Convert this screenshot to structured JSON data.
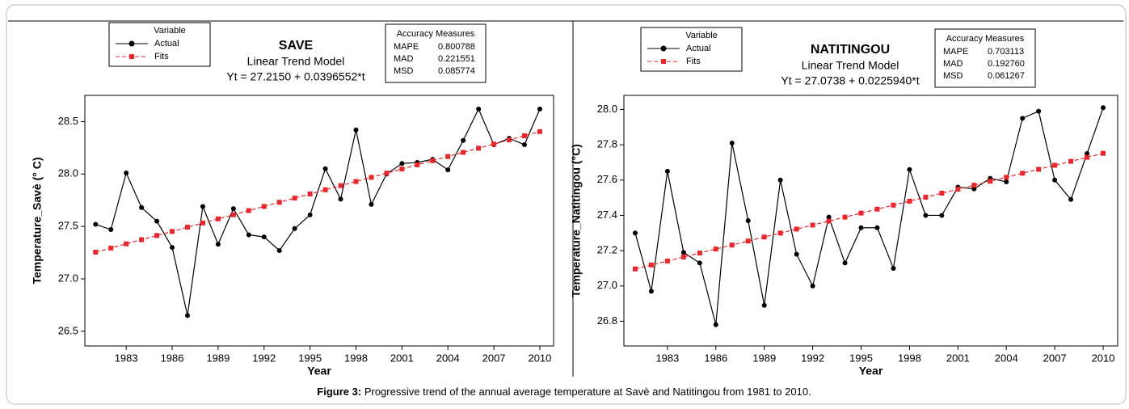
{
  "chart_data": [
    {
      "type": "line",
      "title": "SAVE",
      "subtitle": "Linear Trend Model",
      "equation": "Yt = 27.2150 + 0.0396552*t",
      "x_label": "Year",
      "y_label": "Temperature_Savè (° C)",
      "legend_title": "Variable",
      "x": [
        1981,
        1982,
        1983,
        1984,
        1985,
        1986,
        1987,
        1988,
        1989,
        1990,
        1991,
        1992,
        1993,
        1994,
        1995,
        1996,
        1997,
        1998,
        1999,
        2000,
        2001,
        2002,
        2003,
        2004,
        2005,
        2006,
        2007,
        2008,
        2009,
        2010
      ],
      "series": [
        {
          "name": "Actual",
          "color": "#000000",
          "marker": "circle",
          "dashed": false,
          "values": [
            27.52,
            27.47,
            28.01,
            27.68,
            27.55,
            27.3,
            26.65,
            27.69,
            27.33,
            27.67,
            27.42,
            27.4,
            27.27,
            27.48,
            27.61,
            28.05,
            27.76,
            28.42,
            27.71,
            28.0,
            28.1,
            28.11,
            28.14,
            28.04,
            28.32,
            28.62,
            28.28,
            28.34,
            28.28,
            28.62
          ]
        },
        {
          "name": "Fits",
          "color": "#e8262b",
          "marker": "square",
          "dashed": true,
          "values": [
            27.2547,
            27.2943,
            27.334,
            27.3736,
            27.4133,
            27.4529,
            27.4926,
            27.5322,
            27.5719,
            27.6116,
            27.6512,
            27.6909,
            27.7305,
            27.7702,
            27.8098,
            27.8495,
            27.8891,
            27.9288,
            27.9684,
            28.0081,
            28.0478,
            28.0874,
            28.1271,
            28.1667,
            28.2064,
            28.246,
            28.2857,
            28.3253,
            28.365,
            28.4047
          ]
        }
      ],
      "xlim": [
        1980.3,
        2010.9
      ],
      "xticks": [
        1983,
        1986,
        1989,
        1992,
        1995,
        1998,
        2001,
        2004,
        2007,
        2010
      ],
      "ylim": [
        26.36,
        28.75
      ],
      "yticks": [
        {
          "value": 26.5,
          "label": "26.5"
        },
        {
          "value": 27,
          "label": "27.0"
        },
        {
          "value": 27.5,
          "label": "27.5"
        },
        {
          "value": 28,
          "label": "28.0"
        },
        {
          "value": 28.5,
          "label": "28.5"
        }
      ],
      "accuracy": {
        "title": "Accuracy Measures",
        "rows": [
          [
            "MAPE",
            "0.800788"
          ],
          [
            "MAD",
            "0.221551"
          ],
          [
            "MSD",
            "0.085774"
          ]
        ]
      }
    },
    {
      "type": "line",
      "title": "NATITINGOU",
      "subtitle": "Linear Trend Model",
      "equation": "Yt = 27.0738 + 0.0225940*t",
      "x_label": "Year",
      "y_label": "Temperature_Natitingou (°C)",
      "legend_title": "Variable",
      "x": [
        1981,
        1982,
        1983,
        1984,
        1985,
        1986,
        1987,
        1988,
        1989,
        1990,
        1991,
        1992,
        1993,
        1994,
        1995,
        1996,
        1997,
        1998,
        1999,
        2000,
        2001,
        2002,
        2003,
        2004,
        2005,
        2006,
        2007,
        2008,
        2009,
        2010
      ],
      "series": [
        {
          "name": "Actual",
          "color": "#000000",
          "marker": "circle",
          "dashed": false,
          "values": [
            27.3,
            26.97,
            27.65,
            27.19,
            27.13,
            26.78,
            27.81,
            27.37,
            26.89,
            27.6,
            27.18,
            27.0,
            27.39,
            27.13,
            27.33,
            27.33,
            27.1,
            27.66,
            27.4,
            27.4,
            27.56,
            27.55,
            27.61,
            27.59,
            27.95,
            27.99,
            27.6,
            27.49,
            27.75,
            28.01
          ]
        },
        {
          "name": "Fits",
          "color": "#e8262b",
          "marker": "square",
          "dashed": true,
          "values": [
            27.0964,
            27.119,
            27.1416,
            27.1642,
            27.1868,
            27.2094,
            27.232,
            27.2546,
            27.2771,
            27.2997,
            27.3223,
            27.3449,
            27.3675,
            27.3901,
            27.4127,
            27.4353,
            27.4579,
            27.4805,
            27.5031,
            27.5257,
            27.5483,
            27.5709,
            27.5935,
            27.6161,
            27.6387,
            27.6612,
            27.6838,
            27.7064,
            27.729,
            27.7516
          ]
        }
      ],
      "xlim": [
        1980.3,
        2010.9
      ],
      "xticks": [
        1983,
        1986,
        1989,
        1992,
        1995,
        1998,
        2001,
        2004,
        2007,
        2010
      ],
      "ylim": [
        26.66,
        28.08
      ],
      "yticks": [
        {
          "value": 26.8,
          "label": "26.8"
        },
        {
          "value": 27,
          "label": "27.0"
        },
        {
          "value": 27.2,
          "label": "27.2"
        },
        {
          "value": 27.4,
          "label": "27.4"
        },
        {
          "value": 27.6,
          "label": "27.6"
        },
        {
          "value": 27.8,
          "label": "27.8"
        },
        {
          "value": 28,
          "label": "28.0"
        }
      ],
      "accuracy": {
        "title": "Accuracy Measures",
        "rows": [
          [
            "MAPE",
            "0.703113"
          ],
          [
            "MAD",
            "0.192760"
          ],
          [
            "MSD",
            "0.061267"
          ]
        ]
      }
    }
  ],
  "caption": {
    "label": "Figure 3:",
    "text": "Progressive trend of the annual average temperature at Savè and Natitingou from 1981 to 2010."
  }
}
